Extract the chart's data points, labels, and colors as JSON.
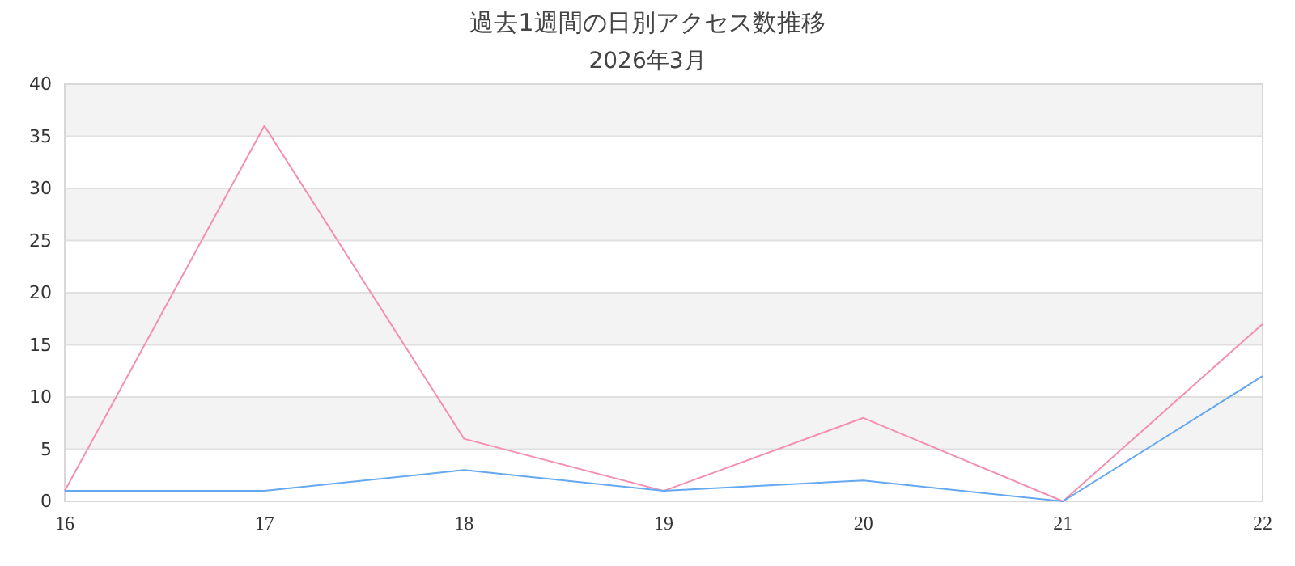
{
  "chart_data": {
    "type": "line",
    "title": "過去1週間の日別アクセス数推移",
    "subtitle": "2026年3月",
    "x": [
      16,
      17,
      18,
      19,
      20,
      21,
      22
    ],
    "xlim": [
      16,
      22
    ],
    "xticks": [
      16,
      17,
      18,
      19,
      20,
      21,
      22
    ],
    "ylim": [
      0,
      40
    ],
    "yticks": [
      0,
      5,
      10,
      15,
      20,
      25,
      30,
      35,
      40
    ],
    "grid": "y",
    "marker": "none",
    "line_style": "solid",
    "series": [
      {
        "color": "#f48fb1",
        "values": [
          1,
          36,
          6,
          1,
          8,
          0,
          17
        ]
      },
      {
        "color": "#64a8f0",
        "values": [
          1,
          1,
          3,
          1,
          2,
          0,
          12
        ]
      }
    ]
  }
}
